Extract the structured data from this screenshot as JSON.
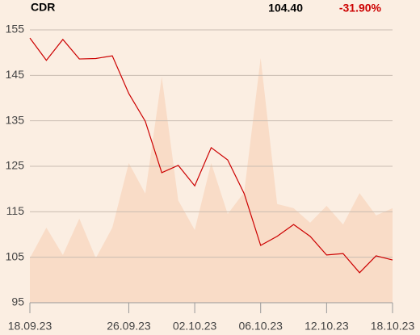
{
  "header": {
    "ticker": "CDR",
    "price": "104.40",
    "change": "-31.90%",
    "change_color": "#cc0000"
  },
  "chart_data": {
    "type": "line",
    "categories": [
      "18.09.23",
      null,
      null,
      null,
      null,
      null,
      "26.09.23",
      null,
      null,
      null,
      "02.10.23",
      null,
      null,
      null,
      "06.10.23",
      null,
      null,
      null,
      "12.10.23",
      null,
      null,
      null,
      "18.10.23"
    ],
    "series": [
      {
        "type": "area",
        "color": "#f9dcc7",
        "values": [
          104.8,
          111.5,
          105.5,
          113.5,
          104.8,
          111.5,
          125.7,
          119.0,
          144.7,
          117.5,
          111.0,
          125.7,
          114.5,
          119.3,
          148.8,
          116.7,
          115.8,
          112.6,
          116.3,
          112.2,
          119.1,
          114.2,
          115.8
        ]
      },
      {
        "type": "line",
        "color": "#cc0000",
        "values": [
          153.2,
          148.3,
          152.9,
          148.6,
          148.7,
          149.3,
          141.0,
          134.9,
          123.6,
          125.2,
          120.7,
          129.1,
          126.4,
          119.0,
          107.6,
          109.6,
          112.2,
          109.6,
          105.5,
          105.8,
          101.6,
          105.3,
          104.4
        ]
      }
    ],
    "ylim": [
      95,
      155
    ],
    "yticks": [
      95,
      105,
      115,
      125,
      135,
      145,
      155
    ],
    "grid": true
  }
}
